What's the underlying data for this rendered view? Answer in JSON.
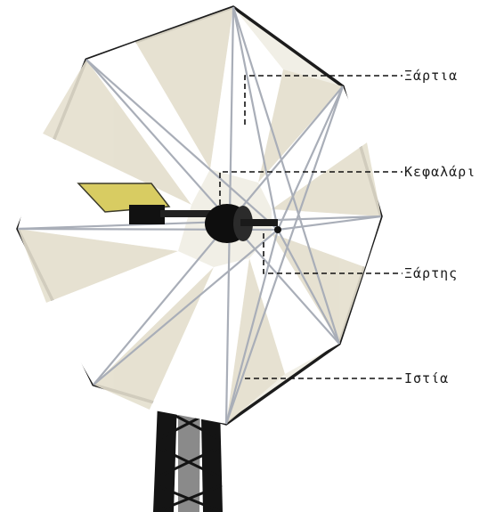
{
  "diagram": {
    "labels": [
      {
        "id": "xartia",
        "text": "Ξάρτια"
      },
      {
        "id": "kefalari",
        "text": "Κεφαλάρι"
      },
      {
        "id": "xartis",
        "text": "Ξάρτης"
      },
      {
        "id": "istia",
        "text": "Ιστία"
      }
    ]
  },
  "colors": {
    "sail_fill": "#f1efe6",
    "sail_shade": "#e7e3d3",
    "frame": "#1c1c1c",
    "spoke": "#a9aeb8",
    "tail_vane": "#d8cc62",
    "tower": "#141414"
  }
}
